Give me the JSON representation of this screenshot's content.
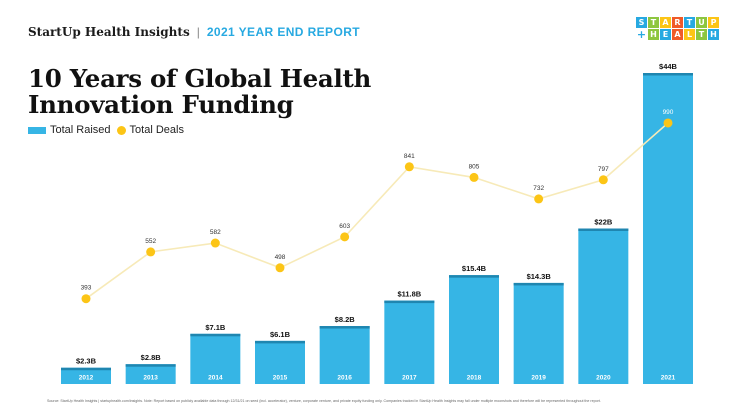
{
  "header": {
    "brand": "StartUp Health Insights",
    "separator": "|",
    "report": "2021 YEAR END REPORT"
  },
  "logo": {
    "top_letters": [
      "S",
      "T",
      "A",
      "R",
      "T",
      "U",
      "P"
    ],
    "top_colors": [
      "#27a9e1",
      "#8dc63f",
      "#fcc516",
      "#f05a28",
      "#27a9e1",
      "#8dc63f",
      "#fcc516"
    ],
    "plus": "+",
    "bottom_letters": [
      "H",
      "E",
      "A",
      "L",
      "T",
      "H"
    ],
    "bottom_colors": [
      "#8dc63f",
      "#27a9e1",
      "#f05a28",
      "#fcc516",
      "#8dc63f",
      "#27a9e1"
    ]
  },
  "title": {
    "line1": "10 Years of Global Health",
    "line2": "Innovation Funding"
  },
  "legend": {
    "bars": "Total Raised",
    "dots": "Total Deals"
  },
  "colors": {
    "bar": "#36b5e5",
    "bar_top": "#1f86b0",
    "bar_label": "#ffffff",
    "dot": "#fcc516",
    "line": "#f7eab8",
    "value_text": "#111111",
    "deal_text": "#333333"
  },
  "chart_data": {
    "type": "bar",
    "categories": [
      "2012",
      "2013",
      "2014",
      "2015",
      "2016",
      "2017",
      "2018",
      "2019",
      "2020",
      "2021"
    ],
    "series": [
      {
        "name": "Total Raised",
        "type": "bar",
        "values": [
          2.3,
          2.8,
          7.1,
          6.1,
          8.2,
          11.8,
          15.4,
          14.3,
          22,
          44
        ],
        "labels": [
          "$2.3B",
          "$2.8B",
          "$7.1B",
          "$6.1B",
          "$8.2B",
          "$11.8B",
          "$15.4B",
          "$14.3B",
          "$22B",
          "$44B"
        ]
      },
      {
        "name": "Total Deals",
        "type": "line",
        "values": [
          393,
          552,
          582,
          498,
          603,
          841,
          805,
          732,
          797,
          990
        ]
      }
    ],
    "title": "10 Years of Global Health Innovation Funding",
    "xlabel": "",
    "ylabel": "",
    "legend_position": "top-left",
    "grid": false
  },
  "footer": {
    "source": "Source: StartUp Health Insights | startuphealth.com/insights. Note: Report based on publicly available data through 12/31/21 on seed (incl. accelerator), venture, corporate venture, and private equity funding only. Companies tracked in StartUp Health Insights may fall under multiple moonshots and therefore will be represented throughout the report."
  }
}
